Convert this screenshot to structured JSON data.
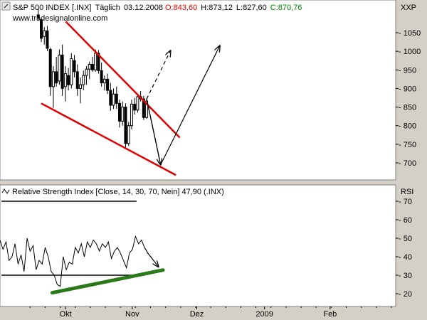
{
  "chart_data": [
    {
      "type": "candlestick",
      "header": {
        "symbol": "S&P 500 INDEX [.INX]",
        "period": "Täglich",
        "date": "03.12.2008",
        "open_text": "O:843,60",
        "high_text": "H:873,12",
        "low_text": "L:827,60",
        "close_text": "C:870,76"
      },
      "watermark": "www.tradesignalonline.com",
      "y_axis_label": "XXP",
      "ylim": [
        655,
        1110
      ],
      "yticks": [
        700,
        750,
        800,
        850,
        900,
        950,
        1000,
        1050
      ],
      "ytick_labels": [
        "700",
        "750",
        "800",
        "850",
        "900",
        "950",
        "1000",
        "1050"
      ],
      "x_labels": [
        "Okt",
        "Nov",
        "Dez",
        "2009",
        "Feb"
      ],
      "x_label_days": [
        30.5,
        61.5,
        91.5,
        123,
        153.5
      ],
      "xlim": [
        0,
        184
      ],
      "candles": [
        {
          "day": 17.8,
          "open": 1098,
          "high": 1115,
          "low": 1082,
          "close": 1090
        },
        {
          "day": 19.2,
          "open": 1085,
          "high": 1090,
          "low": 1025,
          "close": 1035
        },
        {
          "day": 20.6,
          "open": 1040,
          "high": 1065,
          "low": 1018,
          "close": 1055
        },
        {
          "day": 22.0,
          "open": 1055,
          "high": 1068,
          "low": 1000,
          "close": 1008
        },
        {
          "day": 23.4,
          "open": 1005,
          "high": 1010,
          "low": 880,
          "close": 905
        },
        {
          "day": 24.8,
          "open": 905,
          "high": 960,
          "low": 848,
          "close": 945
        },
        {
          "day": 26.2,
          "open": 945,
          "high": 985,
          "low": 905,
          "close": 915
        },
        {
          "day": 27.6,
          "open": 920,
          "high": 1005,
          "low": 910,
          "close": 990
        },
        {
          "day": 29.0,
          "open": 990,
          "high": 1018,
          "low": 880,
          "close": 900
        },
        {
          "day": 30.4,
          "open": 905,
          "high": 960,
          "low": 865,
          "close": 940
        },
        {
          "day": 31.8,
          "open": 935,
          "high": 955,
          "low": 895,
          "close": 910
        },
        {
          "day": 33.2,
          "open": 910,
          "high": 995,
          "low": 900,
          "close": 980
        },
        {
          "day": 34.6,
          "open": 975,
          "high": 990,
          "low": 930,
          "close": 945
        },
        {
          "day": 36.0,
          "open": 945,
          "high": 965,
          "low": 880,
          "close": 900
        },
        {
          "day": 37.4,
          "open": 900,
          "high": 930,
          "low": 860,
          "close": 910
        },
        {
          "day": 38.8,
          "open": 910,
          "high": 948,
          "low": 895,
          "close": 935
        },
        {
          "day": 40.2,
          "open": 935,
          "high": 960,
          "low": 910,
          "close": 952
        },
        {
          "day": 41.6,
          "open": 952,
          "high": 972,
          "low": 925,
          "close": 965
        },
        {
          "day": 43.0,
          "open": 965,
          "high": 985,
          "low": 945,
          "close": 950
        },
        {
          "day": 44.4,
          "open": 950,
          "high": 1005,
          "low": 945,
          "close": 995
        },
        {
          "day": 45.8,
          "open": 995,
          "high": 1003,
          "low": 940,
          "close": 948
        },
        {
          "day": 47.2,
          "open": 948,
          "high": 970,
          "low": 905,
          "close": 915
        },
        {
          "day": 48.6,
          "open": 915,
          "high": 935,
          "low": 895,
          "close": 925
        },
        {
          "day": 50.0,
          "open": 925,
          "high": 940,
          "low": 885,
          "close": 895
        },
        {
          "day": 51.4,
          "open": 895,
          "high": 915,
          "low": 840,
          "close": 855
        },
        {
          "day": 52.8,
          "open": 855,
          "high": 900,
          "low": 845,
          "close": 885
        },
        {
          "day": 54.2,
          "open": 885,
          "high": 905,
          "low": 845,
          "close": 860
        },
        {
          "day": 55.6,
          "open": 860,
          "high": 870,
          "low": 795,
          "close": 812
        },
        {
          "day": 57.0,
          "open": 812,
          "high": 865,
          "low": 800,
          "close": 850
        },
        {
          "day": 58.4,
          "open": 850,
          "high": 860,
          "low": 740,
          "close": 752
        },
        {
          "day": 59.8,
          "open": 752,
          "high": 810,
          "low": 745,
          "close": 800
        },
        {
          "day": 61.2,
          "open": 800,
          "high": 870,
          "low": 790,
          "close": 858
        },
        {
          "day": 62.6,
          "open": 858,
          "high": 875,
          "low": 830,
          "close": 842
        },
        {
          "day": 64.0,
          "open": 842,
          "high": 885,
          "low": 835,
          "close": 878
        },
        {
          "day": 65.4,
          "open": 878,
          "high": 893,
          "low": 865,
          "close": 872
        },
        {
          "day": 66.8,
          "open": 872,
          "high": 880,
          "low": 815,
          "close": 822
        },
        {
          "day": 68.2,
          "open": 822,
          "high": 873,
          "low": 818,
          "close": 866
        }
      ],
      "channel_lines": [
        {
          "from": {
            "day": 30.6,
            "value": 1080
          },
          "to": {
            "day": 83.6,
            "value": 768
          }
        },
        {
          "from": {
            "day": 19.2,
            "value": 860
          },
          "to": {
            "day": 81.8,
            "value": 667
          }
        }
      ],
      "forecast_paths": [
        {
          "style": "solid",
          "points": [
            {
              "day": 68.2,
              "value": 872
            },
            {
              "day": 74.7,
              "value": 695
            },
            {
              "day": 102.2,
              "value": 1015
            }
          ]
        },
        {
          "style": "dashed",
          "points": [
            {
              "day": 68.2,
              "value": 872
            },
            {
              "day": 79.3,
              "value": 1002
            }
          ]
        }
      ]
    },
    {
      "type": "line",
      "header_text": "Relative Strength Index [Close, 14, 30, 70, Nein] 47,90 (.INX)",
      "y_axis_label": "RSI",
      "ylim": [
        13,
        77
      ],
      "yticks": [
        20,
        30,
        40,
        50,
        60,
        70
      ],
      "ytick_labels": [
        "20",
        "30",
        "40",
        "50",
        "60",
        "70"
      ],
      "xlim": [
        0,
        184
      ],
      "reference_levels": [
        70,
        30
      ],
      "reference_levels_end_day": 63.5,
      "series": [
        {
          "x": [
            0,
            1.4,
            2.8,
            4.2,
            5.6,
            7.0,
            8.4,
            9.8,
            11.2,
            12.6,
            14.0,
            15.4,
            16.8,
            18.2,
            19.6,
            21.0,
            22.4,
            23.8,
            25.2,
            26.6,
            28.0,
            29.4,
            30.8,
            32.2,
            33.6,
            35.0,
            36.4,
            37.8,
            39.2,
            40.6,
            42.0,
            43.4,
            44.8,
            46.2,
            47.6,
            49.0,
            50.4,
            51.8,
            53.2,
            54.6,
            56.0,
            57.4,
            58.8,
            60.2,
            61.6,
            63.0,
            64.4,
            65.8,
            67.2
          ],
          "values": [
            49,
            44,
            48,
            38,
            40,
            47,
            36,
            41,
            32,
            50,
            43,
            46,
            33,
            38,
            36,
            45,
            40,
            32,
            30,
            25,
            24,
            40,
            33,
            37,
            36,
            45,
            42,
            47,
            40,
            48,
            45,
            49,
            47,
            43,
            47,
            45,
            48,
            39,
            43,
            45,
            42,
            38,
            34,
            42,
            44,
            51,
            47,
            49,
            45
          ]
        }
      ],
      "forecast_arrow": [
        {
          "day": 67.2,
          "value": 45
        },
        {
          "day": 68.7,
          "value": 42
        },
        {
          "day": 73.7,
          "value": 34.5
        }
      ],
      "divergence_line": {
        "from": {
          "day": 24.3,
          "value": 20.5
        },
        "to": {
          "day": 75.8,
          "value": 32.8
        }
      }
    }
  ],
  "colors": {
    "frame_background": "#d4d0c8",
    "plot_background": "#ffffff",
    "candles": "#000000",
    "channel_lines": "#e00000",
    "header_open": "#e00000",
    "header_close": "#008000",
    "divergence_line": "#2a7a1a",
    "arrows": "#000000"
  },
  "icons": {
    "price_pane_marker": "chart-marker-icon",
    "rsi_pane_marker": "indicator-wave-icon"
  }
}
